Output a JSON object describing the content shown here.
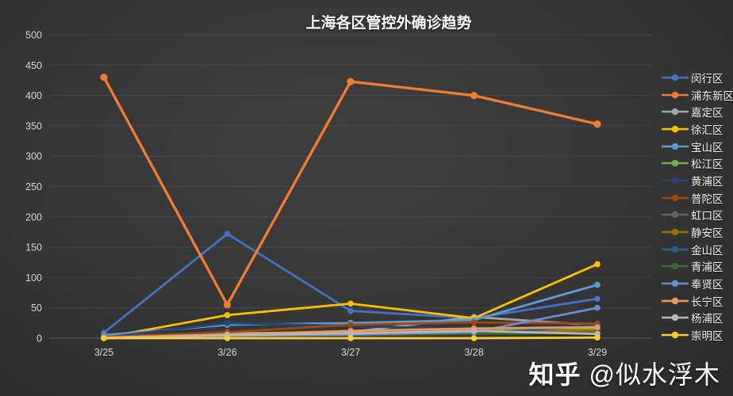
{
  "title": "上海各区管控外确诊趋势",
  "watermark": {
    "brand": "知乎",
    "handle": "@似水浮木"
  },
  "colors": {
    "background": "#373737",
    "grid": "rgba(255,255,255,0.08)",
    "axis_line": "rgba(255,255,255,0.22)",
    "tick_text": "#d9d9d9",
    "title_text": "#ffffff"
  },
  "chart_data": {
    "type": "line",
    "title": "上海各区管控外确诊趋势",
    "xlabel": "",
    "ylabel": "",
    "x": [
      "3/25",
      "3/26",
      "3/27",
      "3/28",
      "3/29"
    ],
    "ylim": [
      0,
      500
    ],
    "yticks": [
      0,
      50,
      100,
      150,
      200,
      250,
      300,
      350,
      400,
      450,
      500
    ],
    "grid": true,
    "legend_position": "right",
    "series": [
      {
        "name": "闵行区",
        "color": "#4472C4",
        "values": [
          9,
          172,
          45,
          33,
          65
        ]
      },
      {
        "name": "浦东新区",
        "color": "#ED7D31",
        "values": [
          430,
          55,
          423,
          400,
          353
        ]
      },
      {
        "name": "嘉定区",
        "color": "#A5A5A5",
        "values": [
          3,
          8,
          10,
          35,
          21
        ]
      },
      {
        "name": "徐汇区",
        "color": "#FFC000",
        "values": [
          1,
          38,
          57,
          33,
          122
        ]
      },
      {
        "name": "宝山区",
        "color": "#5B9BD5",
        "values": [
          5,
          22,
          25,
          30,
          88
        ]
      },
      {
        "name": "松江区",
        "color": "#70AD47",
        "values": [
          2,
          6,
          8,
          12,
          15
        ]
      },
      {
        "name": "黄浦区",
        "color": "#264478",
        "values": [
          1,
          25,
          20,
          15,
          21
        ]
      },
      {
        "name": "普陀区",
        "color": "#9E480E",
        "values": [
          2,
          10,
          22,
          26,
          24
        ]
      },
      {
        "name": "虹口区",
        "color": "#636363",
        "values": [
          1,
          5,
          7,
          9,
          12
        ]
      },
      {
        "name": "静安区",
        "color": "#997300",
        "values": [
          0,
          4,
          5,
          8,
          13
        ]
      },
      {
        "name": "金山区",
        "color": "#255E91",
        "values": [
          0,
          3,
          5,
          8,
          20
        ]
      },
      {
        "name": "青浦区",
        "color": "#43682B",
        "values": [
          1,
          3,
          6,
          7,
          9
        ]
      },
      {
        "name": "奉贤区",
        "color": "#698ED0",
        "values": [
          0,
          4,
          6,
          10,
          50
        ]
      },
      {
        "name": "长宁区",
        "color": "#F1975A",
        "values": [
          1,
          6,
          12,
          16,
          18
        ]
      },
      {
        "name": "杨浦区",
        "color": "#B7B7B7",
        "values": [
          0,
          5,
          8,
          12,
          7
        ]
      },
      {
        "name": "崇明区",
        "color": "#FFCD33",
        "values": [
          0,
          0,
          0,
          0,
          1
        ]
      }
    ]
  }
}
